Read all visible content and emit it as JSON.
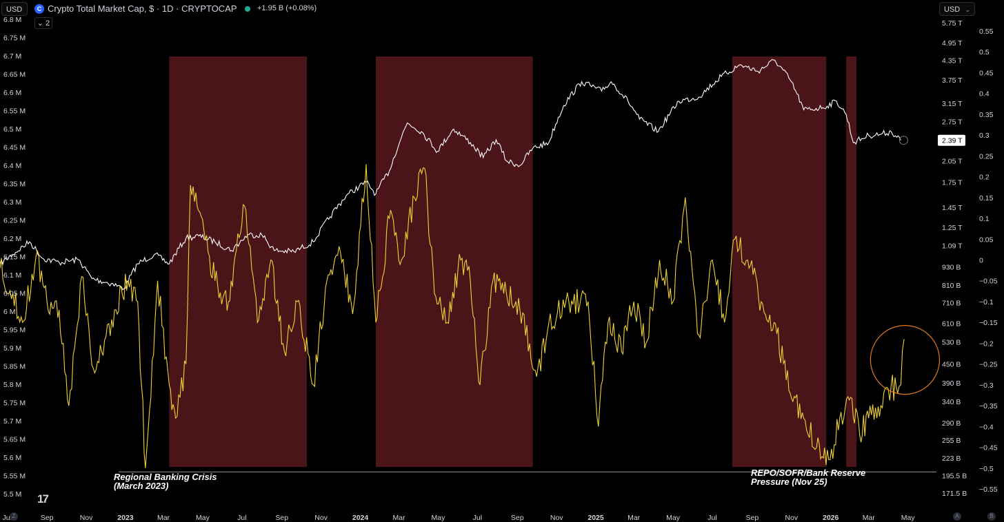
{
  "header": {
    "currency_left": "USD",
    "currency_right": "USD",
    "symbol_icon": "crypto-cap-logo-icon",
    "title": "Crypto Total Market Cap, $ · 1D · CRYPTOCAP",
    "change": "+1.95 B (+0.08%)",
    "collapse_label": "2",
    "chevron_icon": "chevron-down-icon"
  },
  "colors": {
    "background": "#000000",
    "cap_line": "#ffffff",
    "indicator_line": "#f2d335",
    "shade": "#4a1418",
    "circle": "#e07a1f",
    "axis_text": "#d1d4dc"
  },
  "chart_data": {
    "type": "line",
    "title": "Crypto Total Market Cap, $ · 1D · CRYPTOCAP",
    "x_range": [
      "2022-06-20",
      "2026-05-26"
    ],
    "left_axis": {
      "ticks": [
        "6.8 M",
        "6.75 M",
        "6.7 M",
        "6.65 M",
        "6.6 M",
        "6.55 M",
        "6.5 M",
        "6.45 M",
        "6.4 M",
        "6.35 M",
        "6.3 M",
        "6.25 M",
        "6.2 M",
        "6.15 M",
        "6.1 M",
        "6.05 M",
        "6 M",
        "5.95 M",
        "5.9 M",
        "5.85 M",
        "5.8 M",
        "5.75 M",
        "5.7 M",
        "5.65 M",
        "5.6 M",
        "5.55 M",
        "5.5 M"
      ],
      "range": [
        5.5,
        6.8
      ],
      "unit": "M"
    },
    "cap_axis": {
      "ticks": [
        "5.75 T",
        "4.95 T",
        "4.35 T",
        "3.75 T",
        "3.15 T",
        "2.75 T",
        "2.39 T",
        "2.05 T",
        "1.75 T",
        "1.45 T",
        "1.25 T",
        "1.09 T",
        "930 B",
        "810 B",
        "710 B",
        "610 B",
        "530 B",
        "450 B",
        "390 B",
        "340 B",
        "290 B",
        "255 B",
        "223 B",
        "195.5 B",
        "171.5 B"
      ],
      "scale": "log",
      "last_value_label": "2.39 T"
    },
    "right_axis": {
      "ticks": [
        "0.55",
        "0.5",
        "0.45",
        "0.4",
        "0.35",
        "0.3",
        "0.25",
        "0.2",
        "0.15",
        "0.1",
        "0.05",
        "0",
        "−0.05",
        "−0.1",
        "−0.15",
        "−0.2",
        "−0.25",
        "−0.3",
        "−0.35",
        "−0.4",
        "−0.45",
        "−0.5",
        "−0.55"
      ],
      "range": [
        -0.55,
        0.55
      ]
    },
    "x_ticks": [
      "Jul",
      "Sep",
      "Nov",
      "2023",
      "Mar",
      "May",
      "Jul",
      "Sep",
      "Nov",
      "2024",
      "Mar",
      "May",
      "Jul",
      "Sep",
      "Nov",
      "2025",
      "Mar",
      "May",
      "Jul",
      "Sep",
      "Nov",
      "2026",
      "Mar",
      "May"
    ],
    "series": [
      {
        "name": "Crypto Total Market Cap",
        "axis": "cap",
        "points": [
          [
            "2022-06-20",
            0.95
          ],
          [
            "2022-07-10",
            1.02
          ],
          [
            "2022-08-05",
            1.12
          ],
          [
            "2022-08-25",
            0.99
          ],
          [
            "2022-09-20",
            0.96
          ],
          [
            "2022-10-20",
            0.98
          ],
          [
            "2022-11-10",
            0.85
          ],
          [
            "2022-12-10",
            0.82
          ],
          [
            "2022-12-30",
            0.79
          ],
          [
            "2023-01-20",
            0.95
          ],
          [
            "2023-02-15",
            1.02
          ],
          [
            "2023-03-10",
            0.95
          ],
          [
            "2023-04-05",
            1.15
          ],
          [
            "2023-04-25",
            1.17
          ],
          [
            "2023-05-20",
            1.12
          ],
          [
            "2023-06-15",
            1.05
          ],
          [
            "2023-07-10",
            1.18
          ],
          [
            "2023-08-01",
            1.18
          ],
          [
            "2023-08-20",
            1.05
          ],
          [
            "2023-09-20",
            1.04
          ],
          [
            "2023-10-20",
            1.12
          ],
          [
            "2023-11-15",
            1.35
          ],
          [
            "2023-12-10",
            1.58
          ],
          [
            "2024-01-10",
            1.75
          ],
          [
            "2024-01-25",
            1.6
          ],
          [
            "2024-02-15",
            1.9
          ],
          [
            "2024-03-05",
            2.45
          ],
          [
            "2024-03-14",
            2.72
          ],
          [
            "2024-04-05",
            2.55
          ],
          [
            "2024-04-30",
            2.2
          ],
          [
            "2024-05-25",
            2.6
          ],
          [
            "2024-06-20",
            2.35
          ],
          [
            "2024-07-10",
            2.1
          ],
          [
            "2024-07-30",
            2.4
          ],
          [
            "2024-08-15",
            2.05
          ],
          [
            "2024-09-05",
            1.98
          ],
          [
            "2024-09-25",
            2.25
          ],
          [
            "2024-10-20",
            2.35
          ],
          [
            "2024-11-12",
            3.1
          ],
          [
            "2024-12-10",
            3.7
          ],
          [
            "2025-01-10",
            3.45
          ],
          [
            "2025-01-25",
            3.7
          ],
          [
            "2025-02-20",
            3.2
          ],
          [
            "2025-03-10",
            2.8
          ],
          [
            "2025-04-08",
            2.55
          ],
          [
            "2025-05-10",
            3.2
          ],
          [
            "2025-06-10",
            3.3
          ],
          [
            "2025-07-15",
            3.85
          ],
          [
            "2025-08-14",
            4.2
          ],
          [
            "2025-09-10",
            4.0
          ],
          [
            "2025-10-06",
            4.35
          ],
          [
            "2025-10-30",
            3.75
          ],
          [
            "2025-11-20",
            3.0
          ],
          [
            "2025-12-20",
            3.05
          ],
          [
            "2026-01-10",
            3.2
          ],
          [
            "2026-01-25",
            2.9
          ],
          [
            "2026-02-05",
            2.35
          ],
          [
            "2026-03-01",
            2.48
          ],
          [
            "2026-03-20",
            2.5
          ],
          [
            "2026-04-05",
            2.55
          ],
          [
            "2026-04-20",
            2.39
          ]
        ]
      },
      {
        "name": "Indicator",
        "axis": "right",
        "points": [
          [
            "2022-06-20",
            -0.02
          ],
          [
            "2022-07-10",
            -0.08
          ],
          [
            "2022-07-25",
            -0.15
          ],
          [
            "2022-08-15",
            0.01
          ],
          [
            "2022-09-01",
            -0.1
          ],
          [
            "2022-09-20",
            -0.12
          ],
          [
            "2022-10-05",
            -0.35
          ],
          [
            "2022-10-25",
            -0.04
          ],
          [
            "2022-11-12",
            -0.26
          ],
          [
            "2022-11-25",
            -0.22
          ],
          [
            "2022-12-15",
            -0.12
          ],
          [
            "2023-01-05",
            -0.05
          ],
          [
            "2023-01-20",
            -0.1
          ],
          [
            "2023-02-01",
            -0.5
          ],
          [
            "2023-02-20",
            -0.05
          ],
          [
            "2023-03-10",
            -0.3
          ],
          [
            "2023-03-20",
            -0.38
          ],
          [
            "2023-04-05",
            -0.25
          ],
          [
            "2023-04-12",
            0.18
          ],
          [
            "2023-05-05",
            0.05
          ],
          [
            "2023-05-20",
            -0.05
          ],
          [
            "2023-06-10",
            -0.1
          ],
          [
            "2023-07-05",
            0.13
          ],
          [
            "2023-07-25",
            -0.15
          ],
          [
            "2023-08-15",
            0.0
          ],
          [
            "2023-09-05",
            -0.22
          ],
          [
            "2023-09-25",
            -0.1
          ],
          [
            "2023-10-20",
            -0.3
          ],
          [
            "2023-11-10",
            -0.05
          ],
          [
            "2023-12-01",
            0.02
          ],
          [
            "2023-12-20",
            -0.13
          ],
          [
            "2024-01-10",
            0.23
          ],
          [
            "2024-01-25",
            -0.15
          ],
          [
            "2024-02-15",
            0.1
          ],
          [
            "2024-03-05",
            0.0
          ],
          [
            "2024-03-25",
            0.15
          ],
          [
            "2024-04-10",
            0.22
          ],
          [
            "2024-04-25",
            -0.08
          ],
          [
            "2024-05-15",
            -0.15
          ],
          [
            "2024-06-05",
            0.0
          ],
          [
            "2024-06-20",
            -0.05
          ],
          [
            "2024-07-05",
            -0.3
          ],
          [
            "2024-07-25",
            -0.05
          ],
          [
            "2024-08-15",
            -0.08
          ],
          [
            "2024-09-05",
            -0.12
          ],
          [
            "2024-10-01",
            -0.28
          ],
          [
            "2024-10-20",
            -0.15
          ],
          [
            "2024-11-20",
            -0.1
          ],
          [
            "2024-12-20",
            -0.1
          ],
          [
            "2025-01-05",
            -0.4
          ],
          [
            "2025-01-20",
            -0.15
          ],
          [
            "2025-02-10",
            -0.22
          ],
          [
            "2025-03-01",
            -0.1
          ],
          [
            "2025-03-20",
            -0.2
          ],
          [
            "2025-04-10",
            0.0
          ],
          [
            "2025-05-01",
            -0.1
          ],
          [
            "2025-05-20",
            0.15
          ],
          [
            "2025-06-10",
            -0.18
          ],
          [
            "2025-07-01",
            0.0
          ],
          [
            "2025-07-20",
            -0.15
          ],
          [
            "2025-08-05",
            0.05
          ],
          [
            "2025-08-25",
            0.0
          ],
          [
            "2025-09-15",
            -0.1
          ],
          [
            "2025-10-05",
            -0.15
          ],
          [
            "2025-10-30",
            -0.32
          ],
          [
            "2025-11-20",
            -0.38
          ],
          [
            "2025-12-10",
            -0.45
          ],
          [
            "2025-12-31",
            -0.48
          ],
          [
            "2026-01-15",
            -0.38
          ],
          [
            "2026-02-01",
            -0.33
          ],
          [
            "2026-02-15",
            -0.42
          ],
          [
            "2026-03-01",
            -0.38
          ],
          [
            "2026-03-20",
            -0.35
          ],
          [
            "2026-04-05",
            -0.3
          ],
          [
            "2026-04-15",
            -0.32
          ],
          [
            "2026-04-20",
            -0.3
          ],
          [
            "2026-04-25",
            -0.19
          ]
        ]
      }
    ],
    "shaded_periods": [
      [
        "2023-03-10",
        "2023-10-10"
      ],
      [
        "2024-01-25",
        "2024-09-25"
      ],
      [
        "2025-08-01",
        "2025-12-25"
      ],
      [
        "2026-01-25",
        "2026-02-10"
      ]
    ],
    "baseline_left_value": 5.56,
    "annotations": [
      "Regional Banking Crisis\n(March 2023)",
      "REPO/SOFR/Bank Reserve\nPressure (Nov 25)"
    ],
    "highlight_circle_date": "2026-04-20",
    "grid": false
  }
}
